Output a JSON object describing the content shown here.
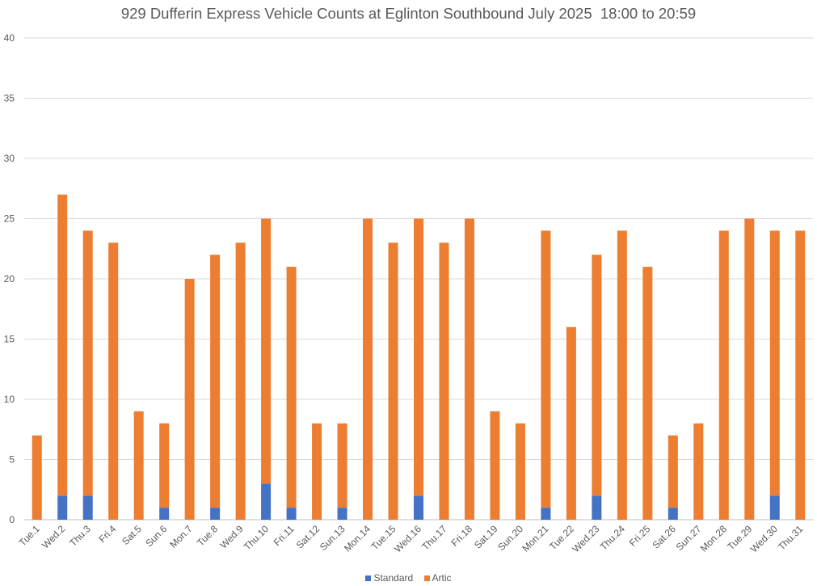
{
  "chart_data": {
    "type": "bar",
    "stacked": true,
    "title": "929 Dufferin Express Vehicle Counts at Eglinton Southbound July 2025  18:00 to 20:59",
    "xlabel": "",
    "ylabel": "",
    "ylim": [
      0,
      40
    ],
    "yticks": [
      0,
      5,
      10,
      15,
      20,
      25,
      30,
      35,
      40
    ],
    "grid": true,
    "legend_position": "bottom",
    "categories": [
      "Tue.1",
      "Wed.2",
      "Thu.3",
      "Fri.4",
      "Sat.5",
      "Sun.6",
      "Mon.7",
      "Tue.8",
      "Wed.9",
      "Thu.10",
      "Fri.11",
      "Sat.12",
      "Sun.13",
      "Mon.14",
      "Tue.15",
      "Wed.16",
      "Thu.17",
      "Fri.18",
      "Sat.19",
      "Sun.20",
      "Mon.21",
      "Tue.22",
      "Wed.23",
      "Thu.24",
      "Fri.25",
      "Sat.26",
      "Sun.27",
      "Mon.28",
      "Tue.29",
      "Wed.30",
      "Thu.31"
    ],
    "series": [
      {
        "name": "Standard",
        "color": "#4472C4",
        "values": [
          0,
          2,
          2,
          0,
          0,
          1,
          0,
          1,
          0,
          3,
          1,
          0,
          1,
          0,
          0,
          2,
          0,
          0,
          0,
          0,
          1,
          0,
          2,
          0,
          0,
          1,
          0,
          0,
          0,
          2,
          0
        ]
      },
      {
        "name": "Artic",
        "color": "#ED7D31",
        "values": [
          7,
          25,
          22,
          23,
          9,
          7,
          20,
          21,
          23,
          22,
          20,
          8,
          7,
          25,
          23,
          23,
          23,
          25,
          9,
          8,
          23,
          16,
          20,
          24,
          21,
          6,
          8,
          24,
          25,
          22,
          24
        ]
      }
    ]
  }
}
